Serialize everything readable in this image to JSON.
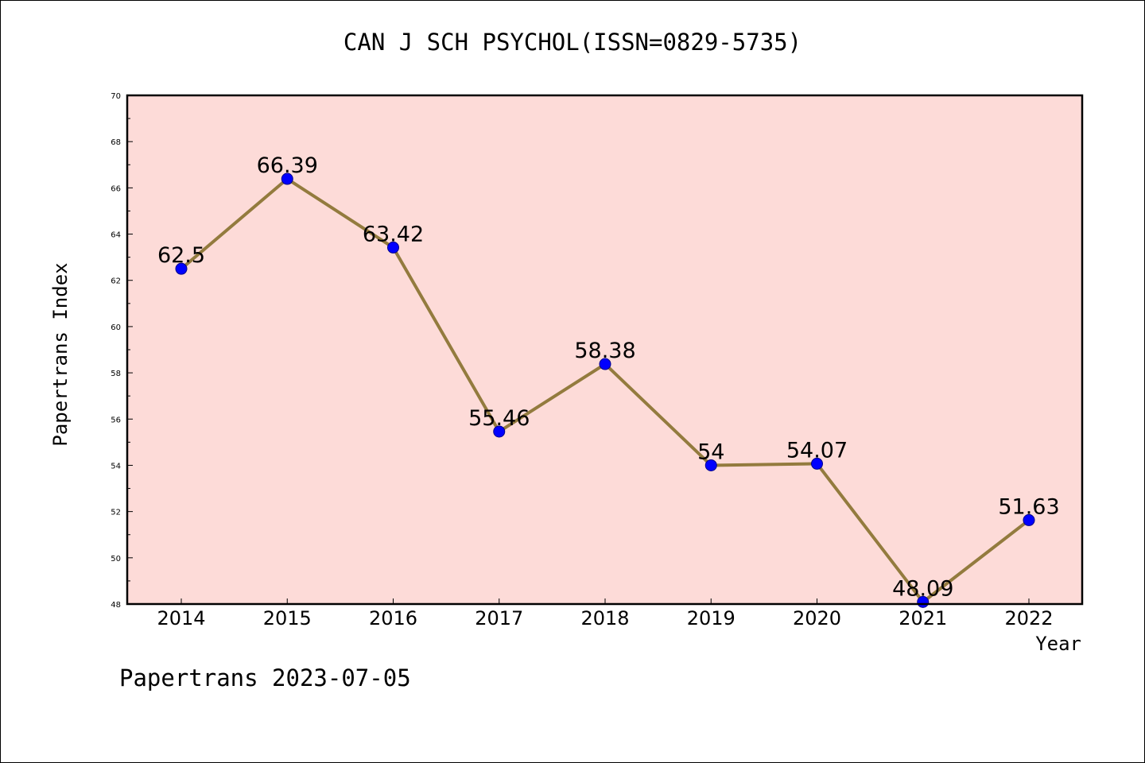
{
  "title": "CAN J SCH PSYCHOL(ISSN=0829-5735)",
  "footer": "Papertrans 2023-07-05",
  "colors": {
    "plot_background": "#fddbd8",
    "line": "#937b3e",
    "marker": "#0000ff",
    "axis": "#000000"
  },
  "chart_data": {
    "type": "line",
    "title": "CAN J SCH PSYCHOL(ISSN=0829-5735)",
    "xlabel": "Year",
    "ylabel": "Papertrans Index",
    "categories": [
      "2014",
      "2015",
      "2016",
      "2017",
      "2018",
      "2019",
      "2020",
      "2021",
      "2022"
    ],
    "series": [
      {
        "values": [
          62.5,
          66.39,
          63.42,
          55.46,
          58.38,
          54,
          54.07,
          48.09,
          51.63
        ],
        "labels": [
          "62.5",
          "66.39",
          "63.42",
          "55.46",
          "58.38",
          "54",
          "54.07",
          "48.09",
          "51.63"
        ]
      }
    ],
    "ylim": [
      48,
      70
    ],
    "yticks": [
      48,
      50,
      52,
      54,
      56,
      58,
      60,
      62,
      64,
      66,
      68,
      70
    ],
    "grid": false,
    "legend": "none"
  }
}
